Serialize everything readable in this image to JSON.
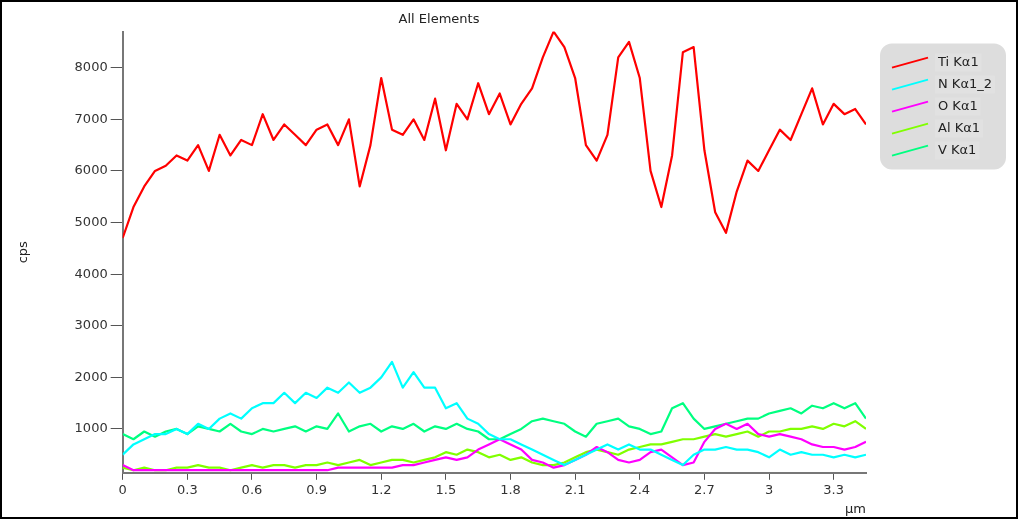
{
  "chart_data": {
    "type": "line",
    "title": "All Elements",
    "xlabel": "μm",
    "ylabel": "cps",
    "marker": "none",
    "line_style": "solid",
    "grid": false,
    "legend": "top right",
    "x": [
      0,
      0.05,
      0.1,
      0.15,
      0.2,
      0.25,
      0.3,
      0.35,
      0.4,
      0.45,
      0.5,
      0.55,
      0.6,
      0.65,
      0.7,
      0.75,
      0.8,
      0.85,
      0.9,
      0.95,
      1.0,
      1.05,
      1.1,
      1.15,
      1.2,
      1.25,
      1.3,
      1.35,
      1.4,
      1.45,
      1.5,
      1.55,
      1.6,
      1.65,
      1.7,
      1.75,
      1.8,
      1.85,
      1.9,
      1.95,
      2.0,
      2.05,
      2.1,
      2.15,
      2.2,
      2.25,
      2.3,
      2.35,
      2.4,
      2.45,
      2.5,
      2.55,
      2.6,
      2.65,
      2.7,
      2.75,
      2.8,
      2.85,
      2.9,
      2.95,
      3.0,
      3.05,
      3.1,
      3.15,
      3.2,
      3.25,
      3.3,
      3.35,
      3.4,
      3.45
    ],
    "xlim": [
      0,
      3.45
    ],
    "xticks": [
      0,
      0.3,
      0.6,
      0.9,
      1.2,
      1.5,
      1.8,
      2.1,
      2.4,
      2.7,
      3,
      3.3
    ],
    "ylim": [
      150,
      8700
    ],
    "yticks": [
      1000,
      2000,
      3000,
      4000,
      5000,
      6000,
      7000,
      8000
    ],
    "series": [
      {
        "name": "Ti Kα1",
        "color": "#ff0000",
        "values": [
          4700,
          5300,
          5700,
          6000,
          6100,
          6300,
          6200,
          6500,
          6000,
          6700,
          6300,
          6600,
          6500,
          7100,
          6600,
          6900,
          6700,
          6500,
          6800,
          6900,
          6500,
          7000,
          5700,
          6500,
          7800,
          6800,
          6700,
          7000,
          6600,
          7400,
          6400,
          7300,
          7000,
          7700,
          7100,
          7500,
          6900,
          7300,
          7600,
          8200,
          8700,
          8400,
          7800,
          6500,
          6200,
          6700,
          8200,
          8500,
          7800,
          6000,
          5300,
          6300,
          8300,
          8400,
          6400,
          5200,
          4800,
          5600,
          6200,
          6000,
          6400,
          6800,
          6600,
          7100,
          7600,
          6900,
          7300,
          7100,
          7200,
          6900
        ]
      },
      {
        "name": "N Kα1_2",
        "color": "#00ffff",
        "values": [
          500,
          700,
          800,
          900,
          900,
          1000,
          900,
          1100,
          1000,
          1200,
          1300,
          1200,
          1400,
          1500,
          1500,
          1700,
          1500,
          1700,
          1600,
          1800,
          1700,
          1900,
          1700,
          1800,
          2000,
          2300,
          1800,
          2100,
          1800,
          1800,
          1400,
          1500,
          1200,
          1100,
          900,
          800,
          800,
          700,
          600,
          500,
          400,
          300,
          400,
          500,
          600,
          700,
          600,
          700,
          600,
          600,
          500,
          400,
          300,
          500,
          600,
          600,
          650,
          600,
          600,
          550,
          450,
          600,
          500,
          550,
          500,
          500,
          450,
          500,
          450,
          500
        ]
      },
      {
        "name": "O Kα1",
        "color": "#ff00ff",
        "values": [
          300,
          200,
          200,
          200,
          200,
          200,
          200,
          200,
          200,
          200,
          200,
          200,
          200,
          200,
          200,
          200,
          200,
          200,
          200,
          200,
          250,
          250,
          250,
          250,
          250,
          250,
          300,
          300,
          350,
          400,
          450,
          400,
          450,
          600,
          700,
          800,
          700,
          600,
          400,
          350,
          250,
          300,
          400,
          500,
          650,
          550,
          400,
          350,
          400,
          550,
          600,
          450,
          300,
          350,
          750,
          1000,
          1100,
          1000,
          1100,
          900,
          850,
          900,
          850,
          800,
          700,
          650,
          650,
          600,
          650,
          750
        ]
      },
      {
        "name": "Al Kα1",
        "color": "#80ff00",
        "values": [
          250,
          200,
          250,
          200,
          200,
          250,
          250,
          300,
          250,
          250,
          200,
          250,
          300,
          250,
          300,
          300,
          250,
          300,
          300,
          350,
          300,
          350,
          400,
          300,
          350,
          400,
          400,
          350,
          400,
          450,
          550,
          500,
          600,
          550,
          450,
          500,
          400,
          450,
          350,
          300,
          300,
          350,
          450,
          550,
          600,
          550,
          500,
          600,
          650,
          700,
          700,
          750,
          800,
          800,
          850,
          900,
          850,
          900,
          950,
          850,
          950,
          950,
          1000,
          1000,
          1050,
          1000,
          1100,
          1050,
          1150,
          1000
        ]
      },
      {
        "name": "V Kα1",
        "color": "#00ff80",
        "values": [
          900,
          800,
          950,
          850,
          950,
          1000,
          900,
          1050,
          1000,
          950,
          1100,
          950,
          900,
          1000,
          950,
          1000,
          1050,
          950,
          1050,
          1000,
          1300,
          950,
          1050,
          1100,
          950,
          1050,
          1000,
          1100,
          950,
          1050,
          1000,
          1100,
          1000,
          950,
          800,
          800,
          900,
          1000,
          1150,
          1200,
          1150,
          1100,
          950,
          850,
          1100,
          1150,
          1200,
          1050,
          1000,
          900,
          950,
          1400,
          1500,
          1200,
          1000,
          1050,
          1100,
          1150,
          1200,
          1200,
          1300,
          1350,
          1400,
          1300,
          1450,
          1400,
          1500,
          1400,
          1500,
          1200
        ]
      }
    ]
  }
}
